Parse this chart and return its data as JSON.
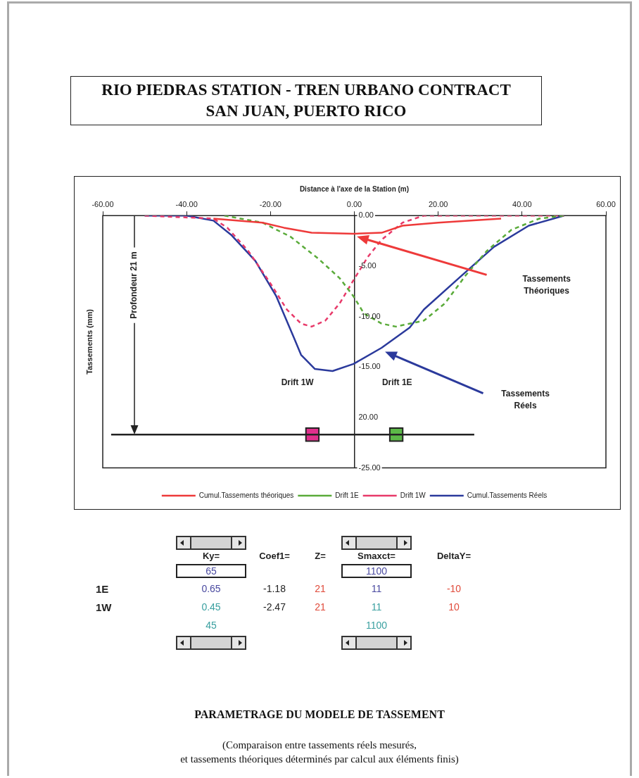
{
  "chart_data": [
    {
      "type": "line",
      "title": "RIO PIEDRAS STATION - TREN URBANO CONTRACT\nSAN JUAN, PUERTO RICO",
      "xlabel": "Distance à l'axe de la Station (m)",
      "ylabel": "Tassements (mm)",
      "xlim": [
        -60,
        60
      ],
      "xticks": [
        {
          "value": -60,
          "label": "-60.00"
        },
        {
          "value": -40,
          "label": "-40.00"
        },
        {
          "value": -20,
          "label": "-20.00"
        },
        {
          "value": 0,
          "label": "0.00"
        },
        {
          "value": 20,
          "label": "20.00"
        },
        {
          "value": 40,
          "label": "40.00"
        },
        {
          "value": 60,
          "label": "60.00"
        }
      ],
      "ylim": [
        -25,
        0
      ],
      "yticks": [
        {
          "value": 0,
          "label": "0.00"
        },
        {
          "value": -5,
          "label": "-5.00"
        },
        {
          "value": -10,
          "label": "-10.00"
        },
        {
          "value": -15,
          "label": "-15.00"
        },
        {
          "value": -20,
          "label": "20.00"
        },
        {
          "value": -25,
          "label": "-25.00"
        }
      ],
      "legend": "bottom",
      "series": [
        {
          "name": "Cumul.Tassements théoriques",
          "type": "line",
          "line_style": "solid",
          "color": "#ee3a3a",
          "x": [
            -33.6,
            -21.9,
            -16.8,
            -10.2,
            -0.2,
            6.5,
            11.5,
            20,
            35
          ],
          "values": [
            -0.3,
            -0.7,
            -1.2,
            -1.7,
            -1.8,
            -1.7,
            -1,
            -0.7,
            -0.3
          ]
        },
        {
          "name": "Drift 1E",
          "type": "line",
          "line_style": "dashed",
          "color": "#5aab3a",
          "x": [
            -31,
            -21.9,
            -15.2,
            -8.5,
            -3.5,
            -0.2,
            2.3,
            6.5,
            9.9,
            16.6,
            21.6,
            26.6,
            31.6,
            37.5,
            44.1,
            50
          ],
          "values": [
            0,
            -0.7,
            -2.1,
            -4.3,
            -6.2,
            -8,
            -9.7,
            -10.7,
            -11,
            -10.4,
            -8.7,
            -5.9,
            -3.5,
            -1.4,
            -0.3,
            0
          ]
        },
        {
          "name": "Drift 1W",
          "type": "line",
          "line_style": "dashed",
          "color": "#e83a6a",
          "x": [
            -50,
            -33.6,
            -30.3,
            -25.3,
            -20.2,
            -16.1,
            -12.7,
            -10.2,
            -6.9,
            -3.5,
            -0.2,
            3.2,
            6.5,
            11.5,
            16.6,
            50
          ],
          "values": [
            0,
            -0.3,
            -1.2,
            -3.5,
            -6.6,
            -9.3,
            -10.7,
            -11,
            -10.4,
            -8.7,
            -6.4,
            -4.1,
            -2.4,
            -0.7,
            0,
            0
          ]
        },
        {
          "name": "Cumul.Tassements Réels",
          "type": "line",
          "line_style": "solid",
          "color": "#2b3a9c",
          "x": [
            -50,
            -40,
            -33.6,
            -29.4,
            -23.6,
            -18.6,
            -14.4,
            -12.7,
            -9.4,
            -5.2,
            -0.2,
            6.5,
            13.2,
            16.6,
            24.9,
            33.3,
            41.6,
            50
          ],
          "values": [
            0,
            0,
            -0.5,
            -1.9,
            -4.5,
            -8,
            -12.1,
            -13.8,
            -15.2,
            -15.4,
            -14.7,
            -13.1,
            -11.1,
            -9.3,
            -6.2,
            -3.1,
            -1,
            0
          ]
        },
        {
          "type": "line",
          "line_style": "solid",
          "color": "#222222",
          "x": [
            -58,
            28.6
          ],
          "values": [
            -21.7,
            -21.7
          ]
        },
        {
          "type": "scatter",
          "marker": "square",
          "color": "#e0308c",
          "x": [
            -10
          ],
          "values": [
            -21.7
          ]
        },
        {
          "type": "scatter",
          "marker": "square",
          "color": "#5cb848",
          "x": [
            10
          ],
          "values": [
            -21.7
          ]
        }
      ],
      "annotations": [
        "Tassements\nThéoriques",
        "Tassements\nRéels",
        "Drift 1W",
        "Drift 1E",
        "Profondeur 21 m"
      ]
    },
    {
      "type": "heatmap",
      "data_labels": true,
      "title": "PARAMETRAGE DU MODELE DE TASSEMENT",
      "categories": [
        "Ky=",
        "Coef1=",
        "Z=",
        "Smaxct=",
        "DeltaY="
      ],
      "y_categories": [
        null,
        "1E",
        "1W",
        null
      ],
      "cells": [
        [
          65,
          null,
          null,
          1100,
          null
        ],
        [
          0.65,
          -1.18,
          21,
          11,
          -10
        ],
        [
          0.45,
          -2.47,
          21,
          11,
          10
        ],
        [
          45,
          null,
          null,
          1100,
          null
        ]
      ],
      "colors": [
        [
          "#4a4aa0",
          null,
          null,
          "#4a4aa0",
          null
        ],
        [
          "#4a4aa0",
          "#222222",
          "#e04a3a",
          "#4a4aa0",
          "#e04a3a"
        ],
        [
          "#3aa0a0",
          "#222222",
          "#e04a3a",
          "#3aa0a0",
          "#e04a3a"
        ],
        [
          "#3aa0a0",
          null,
          null,
          "#3aa0a0",
          null
        ]
      ],
      "annotations": [
        "(Comparaison entre tassements réels mesurés,\net tassements théoriques déterminés par calcul aux éléments finis)"
      ]
    }
  ]
}
